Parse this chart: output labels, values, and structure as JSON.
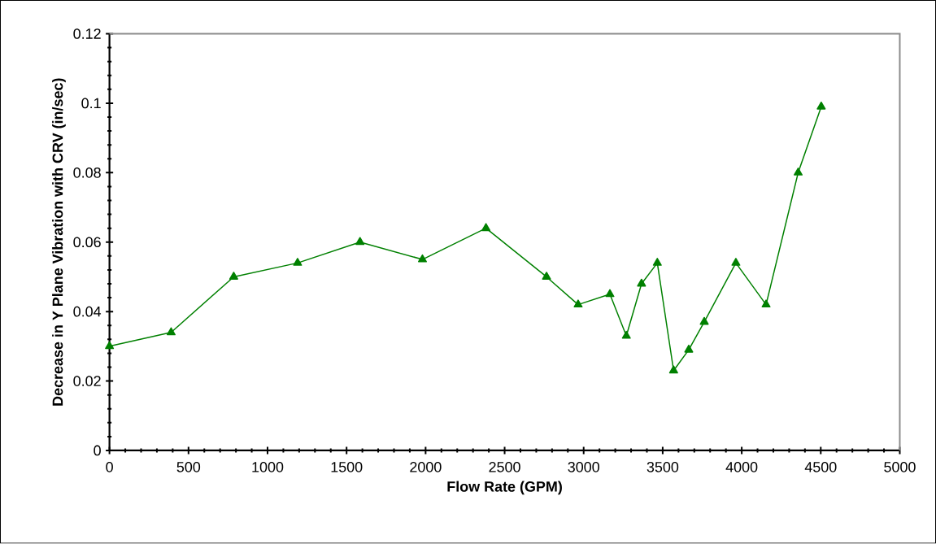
{
  "chart_data": {
    "type": "line",
    "xlabel": "Flow Rate (GPM)",
    "ylabel": "Decrease in Y Plane Vibration with CRV (in/sec)",
    "series": [
      {
        "color": "#008000",
        "x": [
          0,
          390,
          786,
          1190,
          1585,
          1980,
          2382,
          2765,
          2965,
          3166,
          3270,
          3366,
          3466,
          3569,
          3665,
          3763,
          3963,
          4154,
          4357,
          4503
        ],
        "values": [
          0.03,
          0.034,
          0.05,
          0.054,
          0.06,
          0.055,
          0.064,
          0.05,
          0.042,
          0.045,
          0.033,
          0.048,
          0.054,
          0.023,
          0.029,
          0.037,
          0.054,
          0.042,
          0.08,
          0.099
        ]
      }
    ],
    "xlim": [
      0,
      5000
    ],
    "ylim": [
      0,
      0.12
    ],
    "xticks": [
      0,
      500,
      1000,
      1500,
      2000,
      2500,
      3000,
      3500,
      4000,
      4500,
      5000
    ],
    "yticks": [
      0,
      0.02,
      0.04,
      0.06,
      0.08,
      0.1,
      0.12
    ],
    "marker": "triangle",
    "line_style": "solid",
    "grid": false
  }
}
